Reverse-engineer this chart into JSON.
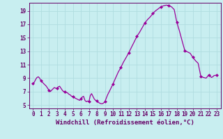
{
  "title": "",
  "xlabel": "Windchill (Refroidissement éolien,°C)",
  "ylabel": "",
  "background_color": "#c8eef0",
  "line_color": "#990099",
  "marker_color": "#990099",
  "grid_color": "#b0dde0",
  "axis_color": "#660066",
  "ylim": [
    4.5,
    20.2
  ],
  "xlim": [
    -0.5,
    23.5
  ],
  "yticks": [
    5,
    7,
    9,
    11,
    13,
    15,
    17,
    19
  ],
  "xticks": [
    0,
    1,
    2,
    3,
    4,
    5,
    6,
    7,
    8,
    9,
    10,
    11,
    12,
    13,
    14,
    15,
    16,
    17,
    18,
    19,
    20,
    21,
    22,
    23
  ],
  "x": [
    0,
    0.17,
    0.33,
    0.5,
    0.67,
    0.83,
    1.0,
    1.17,
    1.33,
    1.5,
    1.67,
    1.83,
    2.0,
    2.17,
    2.33,
    2.5,
    2.67,
    2.83,
    3.0,
    3.17,
    3.33,
    3.5,
    3.67,
    3.83,
    4.0,
    4.17,
    4.33,
    4.5,
    4.67,
    4.83,
    5.0,
    5.17,
    5.33,
    5.5,
    5.67,
    5.83,
    6.0,
    6.17,
    6.33,
    6.5,
    6.67,
    6.83,
    7.0,
    7.17,
    7.33,
    7.5,
    7.67,
    7.83,
    8.0,
    8.17,
    8.33,
    8.5,
    8.67,
    8.83,
    9.0,
    9.33,
    9.67,
    10.0,
    10.33,
    10.67,
    11.0,
    11.33,
    11.67,
    12.0,
    12.33,
    12.67,
    13.0,
    13.33,
    13.67,
    14.0,
    14.33,
    14.67,
    15.0,
    15.33,
    15.67,
    16.0,
    16.33,
    16.67,
    17.0,
    17.33,
    17.67,
    18.0,
    18.33,
    18.67,
    19.0,
    19.33,
    19.67,
    20.0,
    20.33,
    20.67,
    21.0,
    21.33,
    21.67,
    22.0,
    22.17,
    22.33,
    22.5,
    22.67,
    22.83,
    23.0
  ],
  "y": [
    8.2,
    8.4,
    8.8,
    9.1,
    9.2,
    9.0,
    8.6,
    8.4,
    8.2,
    8.0,
    7.8,
    7.5,
    7.2,
    7.0,
    7.2,
    7.4,
    7.6,
    7.5,
    7.5,
    7.7,
    7.8,
    7.5,
    7.2,
    7.0,
    7.0,
    6.9,
    6.8,
    6.6,
    6.5,
    6.3,
    6.3,
    6.1,
    6.0,
    5.9,
    5.8,
    5.7,
    5.9,
    6.2,
    6.3,
    5.7,
    5.5,
    5.6,
    5.5,
    6.4,
    6.7,
    6.3,
    5.9,
    5.7,
    5.6,
    5.4,
    5.3,
    5.2,
    5.2,
    5.3,
    5.5,
    6.5,
    7.3,
    8.1,
    9.0,
    9.9,
    10.6,
    11.4,
    12.1,
    12.8,
    13.6,
    14.4,
    15.2,
    15.8,
    16.5,
    17.2,
    17.7,
    18.1,
    18.6,
    19.0,
    19.3,
    19.6,
    19.75,
    19.85,
    19.8,
    19.6,
    19.2,
    17.3,
    16.0,
    14.5,
    13.1,
    12.9,
    12.7,
    12.1,
    11.6,
    11.2,
    9.3,
    9.1,
    9.0,
    9.5,
    9.3,
    9.1,
    9.2,
    9.4,
    9.4,
    9.5
  ],
  "marker_x": [
    0,
    1,
    2,
    3,
    4,
    5,
    6,
    7,
    8,
    9,
    10,
    11,
    12,
    13,
    14,
    15,
    16,
    17,
    18,
    19,
    20,
    21,
    22,
    23
  ],
  "marker_y": [
    8.2,
    8.6,
    7.2,
    7.5,
    7.0,
    6.3,
    5.9,
    5.5,
    5.6,
    5.5,
    8.1,
    10.6,
    12.8,
    15.2,
    17.2,
    18.6,
    19.6,
    19.8,
    17.3,
    13.1,
    12.1,
    9.3,
    9.5,
    9.5
  ],
  "fontsize_xlabel": 6.5,
  "tick_fontsize": 5.5,
  "line_width": 0.9,
  "marker_size": 2.5
}
